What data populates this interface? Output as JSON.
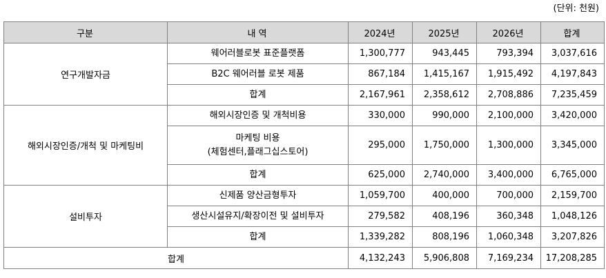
{
  "unit_note": "(단위: 천원)",
  "header": {
    "category": "구분",
    "detail": "내 역",
    "y2024": "2024년",
    "y2025": "2025년",
    "y2026": "2026년",
    "total": "합계"
  },
  "groups": [
    {
      "name": "연구개발자금",
      "rows": [
        {
          "item": "웨어러블로봇 표준플랫폼",
          "item2": "",
          "y2024": "1,300,777",
          "y2025": "943,445",
          "y2026": "793,394",
          "total": "3,037,616"
        },
        {
          "item": "B2C 웨어러블 로봇 제품",
          "item2": "",
          "y2024": "867,184",
          "y2025": "1,415,167",
          "y2026": "1,915,492",
          "total": "4,197,843"
        },
        {
          "item": "합계",
          "item2": "",
          "y2024": "2,167,961",
          "y2025": "2,358,612",
          "y2026": "2,708,886",
          "total": "7,235,459"
        }
      ]
    },
    {
      "name": "해외시장인증/개척 및 마케팅비",
      "rows": [
        {
          "item": "해외시장인증 및 개척비용",
          "item2": "",
          "y2024": "330,000",
          "y2025": "990,000",
          "y2026": "2,100,000",
          "total": "3,420,000"
        },
        {
          "item": "마케팅 비용",
          "item2": "(체험센터,플래그십스토어)",
          "y2024": "295,000",
          "y2025": "1,750,000",
          "y2026": "1,300,000",
          "total": "3,345,000"
        },
        {
          "item": "합계",
          "item2": "",
          "y2024": "625,000",
          "y2025": "2,740,000",
          "y2026": "3,400,000",
          "total": "6,765,000"
        }
      ]
    },
    {
      "name": "설비투자",
      "rows": [
        {
          "item": "신제품 양산금형투자",
          "item2": "",
          "y2024": "1,059,700",
          "y2025": "400,000",
          "y2026": "700,000",
          "total": "2,159,700"
        },
        {
          "item": "생산시설유지/확장이전 및 설비투자",
          "item2": "",
          "y2024": "279,582",
          "y2025": "408,196",
          "y2026": "360,348",
          "total": "1,048,126"
        },
        {
          "item": "합계",
          "item2": "",
          "y2024": "1,339,282",
          "y2025": "808,196",
          "y2026": "1,060,348",
          "total": "3,207,826"
        }
      ]
    }
  ],
  "grand_total": {
    "label": "합계",
    "y2024": "4,132,243",
    "y2025": "5,906,808",
    "y2026": "7,169,234",
    "total": "17,208,285"
  }
}
